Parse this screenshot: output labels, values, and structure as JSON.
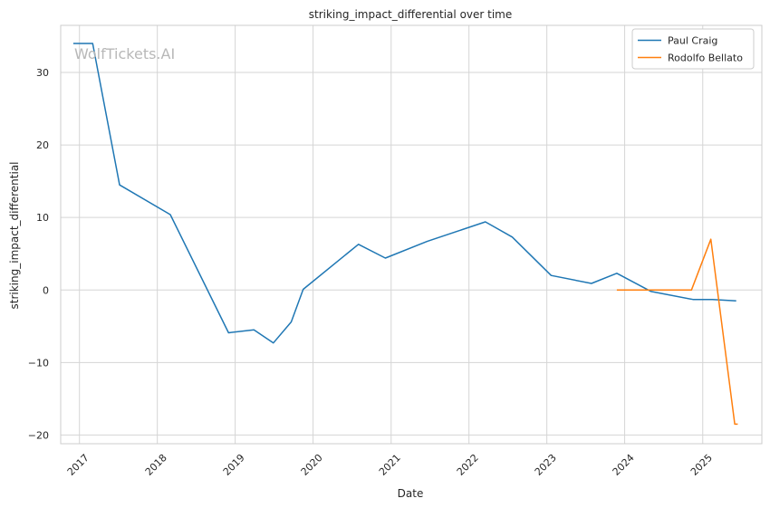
{
  "chart_data": {
    "type": "line",
    "title": "striking_impact_differential over time",
    "xlabel": "Date",
    "ylabel": "striking_impact_differential",
    "watermark": "WolfTickets.AI",
    "x_ticks": [
      "2017",
      "2018",
      "2019",
      "2020",
      "2021",
      "2022",
      "2023",
      "2024",
      "2025"
    ],
    "y_ticks": [
      "30",
      "20",
      "10",
      "0",
      "−10",
      "−20"
    ],
    "xlim": [
      "2016-10-05",
      "2025-10-05"
    ],
    "ylim": [
      -21.2,
      36.5
    ],
    "grid": true,
    "legend_position": "top-right",
    "series": [
      {
        "name": "Paul Craig",
        "color": "#1f77b4",
        "points": [
          [
            "2016-12-03",
            34.0
          ],
          [
            "2017-03-04",
            34.0
          ],
          [
            "2017-07-08",
            14.5
          ],
          [
            "2018-03-03",
            10.4
          ],
          [
            "2018-12-01",
            -5.9
          ],
          [
            "2019-03-30",
            -5.5
          ],
          [
            "2019-06-29",
            -7.3
          ],
          [
            "2019-09-21",
            -4.4
          ],
          [
            "2019-11-16",
            0.1
          ],
          [
            "2020-08-01",
            6.3
          ],
          [
            "2020-12-05",
            4.4
          ],
          [
            "2021-06-19",
            6.7
          ],
          [
            "2022-03-19",
            9.4
          ],
          [
            "2022-07-23",
            7.3
          ],
          [
            "2023-01-21",
            2.0
          ],
          [
            "2023-07-29",
            0.9
          ],
          [
            "2023-11-25",
            2.3
          ],
          [
            "2024-05-04",
            -0.2
          ],
          [
            "2024-11-16",
            -1.3
          ],
          [
            "2025-02-15",
            -1.3
          ],
          [
            "2025-06-07",
            -1.5
          ]
        ]
      },
      {
        "name": "Rodolfo Bellato",
        "color": "#ff7f0e",
        "points": [
          [
            "2023-11-25",
            0.0
          ],
          [
            "2024-03-09",
            0.0
          ],
          [
            "2024-11-09",
            0.0
          ],
          [
            "2025-02-08",
            7.0
          ],
          [
            "2025-05-31",
            -18.5
          ],
          [
            "2025-06-14",
            -18.5
          ]
        ]
      }
    ]
  }
}
